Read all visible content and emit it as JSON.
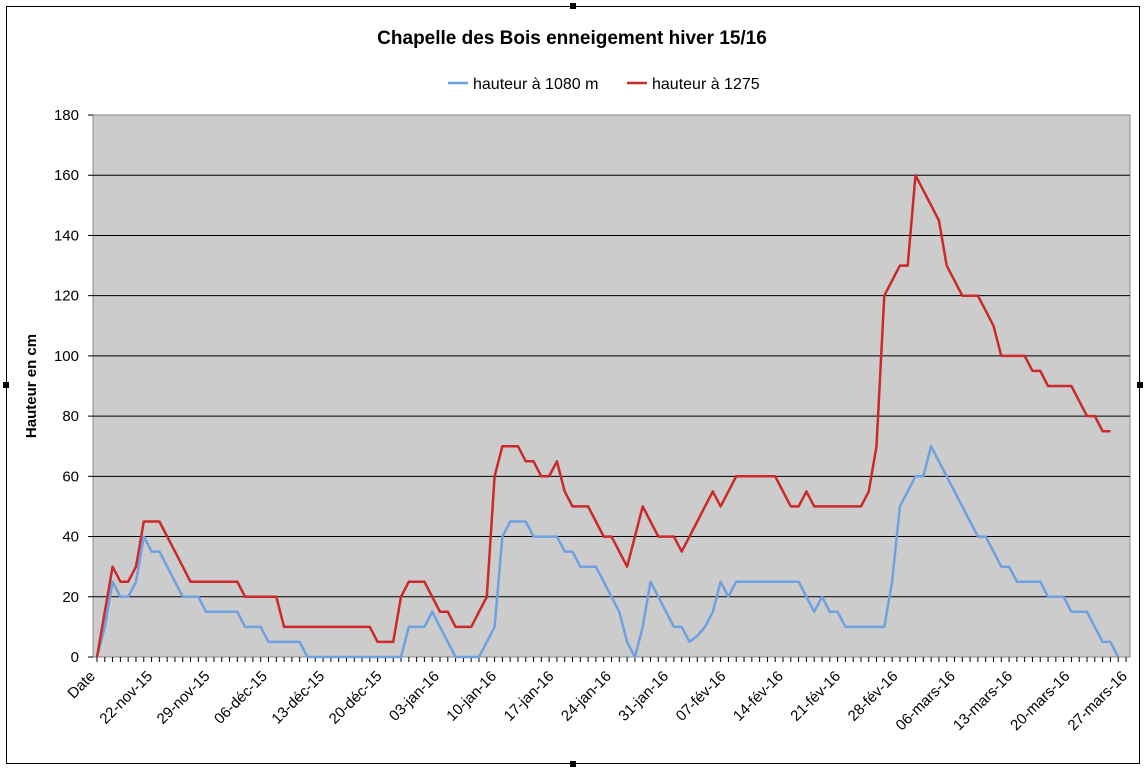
{
  "chart_data": {
    "type": "line",
    "title": "Chapelle des Bois enneigement hiver 15/16",
    "ylabel": "Hauteur en cm",
    "xlabel": "",
    "ylim": [
      0,
      180
    ],
    "yticks": [
      0,
      20,
      40,
      60,
      80,
      100,
      120,
      140,
      160,
      180
    ],
    "grid": true,
    "legend_position": "top",
    "plot_background": "#cccccc",
    "x_start_label": "Date",
    "x_tick_labels": [
      "22-nov-15",
      "29-nov-15",
      "06-déc-15",
      "13-déc-15",
      "20-déc-15",
      "03-jan-16",
      "10-jan-16",
      "17-jan-16",
      "24-jan-16",
      "31-jan-16",
      "07-fév-16",
      "14-fév-16",
      "21-fév-16",
      "28-fév-16",
      "06-mars-16",
      "13-mars-16",
      "20-mars-16",
      "27-mars-16"
    ],
    "series": [
      {
        "name": "hauteur à 1080 m",
        "color": "#6fa0e0",
        "values": [
          0,
          10,
          25,
          20,
          20,
          25,
          40,
          35,
          35,
          30,
          25,
          20,
          20,
          20,
          15,
          15,
          15,
          15,
          15,
          10,
          10,
          10,
          5,
          5,
          5,
          5,
          5,
          0,
          0,
          0,
          0,
          0,
          0,
          0,
          0,
          0,
          0,
          0,
          0,
          0,
          10,
          10,
          10,
          15,
          10,
          5,
          0,
          0,
          0,
          0,
          5,
          10,
          40,
          45,
          45,
          45,
          40,
          40,
          40,
          40,
          35,
          35,
          30,
          30,
          30,
          25,
          20,
          15,
          5,
          0,
          10,
          25,
          20,
          15,
          10,
          10,
          5,
          7,
          10,
          15,
          25,
          20,
          25,
          25,
          25,
          25,
          25,
          25,
          25,
          25,
          25,
          20,
          15,
          20,
          15,
          15,
          10,
          10,
          10,
          10,
          10,
          10,
          25,
          50,
          55,
          60,
          60,
          70,
          65,
          60,
          55,
          50,
          45,
          40,
          40,
          35,
          30,
          30,
          25,
          25,
          25,
          25,
          20,
          20,
          20,
          15,
          15,
          15,
          10,
          5,
          5,
          0
        ]
      },
      {
        "name": "hauteur à 1275",
        "color": "#cc2929",
        "values": [
          0,
          15,
          30,
          25,
          25,
          30,
          45,
          45,
          45,
          40,
          35,
          30,
          25,
          25,
          25,
          25,
          25,
          25,
          25,
          20,
          20,
          20,
          20,
          20,
          10,
          10,
          10,
          10,
          10,
          10,
          10,
          10,
          10,
          10,
          10,
          10,
          5,
          5,
          5,
          20,
          25,
          25,
          25,
          20,
          15,
          15,
          10,
          10,
          10,
          15,
          20,
          60,
          70,
          70,
          70,
          65,
          65,
          60,
          60,
          65,
          55,
          50,
          50,
          50,
          45,
          40,
          40,
          35,
          30,
          40,
          50,
          45,
          40,
          40,
          40,
          35,
          40,
          45,
          50,
          55,
          50,
          55,
          60,
          60,
          60,
          60,
          60,
          60,
          55,
          50,
          50,
          55,
          50,
          50,
          50,
          50,
          50,
          50,
          50,
          55,
          70,
          120,
          125,
          130,
          130,
          160,
          155,
          150,
          145,
          130,
          125,
          120,
          120,
          120,
          115,
          110,
          100,
          100,
          100,
          100,
          95,
          95,
          90,
          90,
          90,
          90,
          85,
          80,
          80,
          75,
          75
        ]
      }
    ]
  }
}
